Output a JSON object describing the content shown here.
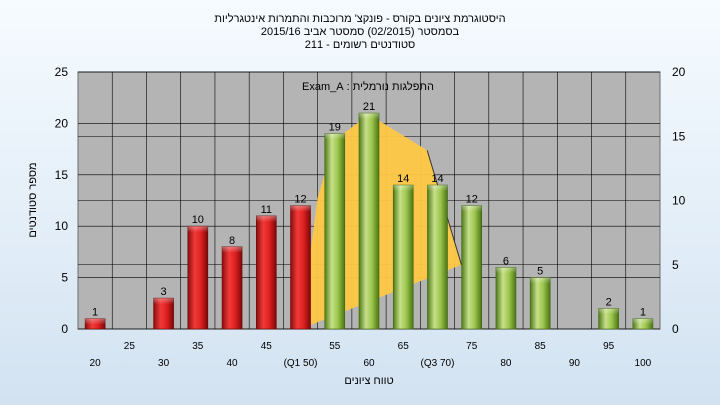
{
  "chart_data": {
    "type": "bar",
    "title_lines": [
      "היסטוגרמת ציונים בקורס - פונקצ' מרוכבות והתמרות אינטגרליות",
      "בסמסטר   (02/2015)  סמסטר אביב 2015/16",
      "סטודנטים רשומים - 211"
    ],
    "xlabel": "טווח ציונים",
    "ylabel": "מספר סטודנטים",
    "annotation": "התפלגות נורמלית : Exam_A",
    "categories": [
      "20",
      "25",
      "30",
      "35",
      "40",
      "45",
      "(Q1 50)",
      "55",
      "60",
      "65",
      "(Q3 70)",
      "75",
      "80",
      "85",
      "90",
      "95",
      "100"
    ],
    "values": [
      1,
      0,
      3,
      10,
      8,
      11,
      12,
      19,
      21,
      14,
      14,
      12,
      6,
      5,
      0,
      2,
      1
    ],
    "label_bars": [
      1,
      0,
      1,
      1,
      1,
      1,
      1,
      1,
      1,
      1,
      1,
      1,
      1,
      1,
      0,
      1,
      1
    ],
    "bar_color_groups": {
      "red": [
        0,
        1,
        2,
        3,
        4,
        5,
        6
      ],
      "green": [
        7,
        8,
        9,
        10,
        11,
        12,
        13,
        14,
        15,
        16
      ]
    },
    "left_axis": {
      "ylim": [
        0,
        25
      ],
      "ticks": [
        0,
        5,
        10,
        15,
        20,
        25
      ]
    },
    "right_axis": {
      "ylim": [
        0,
        20
      ],
      "ticks": [
        0,
        5,
        10,
        15,
        20
      ]
    },
    "grid": true,
    "normal_curve": {
      "axis": "right",
      "points": [
        [
          6,
          0
        ],
        [
          6.5,
          10.2
        ],
        [
          7,
          14.7
        ],
        [
          8,
          16.7
        ],
        [
          9.7,
          13.9
        ],
        [
          10.7,
          5
        ]
      ]
    },
    "colors": {
      "red": "#e02020",
      "green": "#8dbd3a",
      "curve_fill": "#ffc844",
      "plot_bg": "#b4b4b4"
    }
  }
}
